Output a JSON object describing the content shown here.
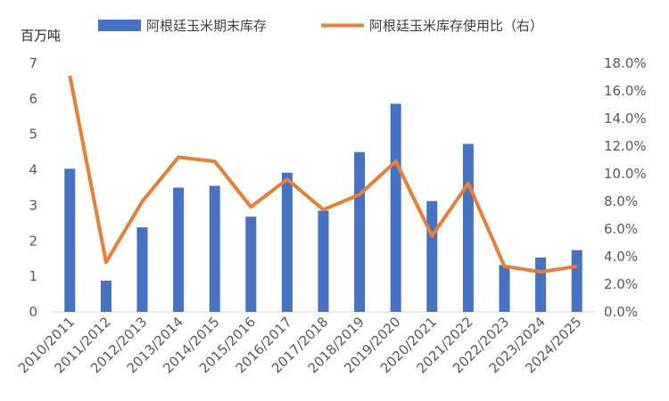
{
  "chart_data": {
    "type": "bar",
    "title": "",
    "ylabel": "百万吨",
    "ylim": [
      0,
      7
    ],
    "y2lim": [
      0,
      18
    ],
    "y_ticks": [
      "0",
      "1",
      "2",
      "3",
      "4",
      "5",
      "6",
      "7"
    ],
    "y2_ticks": [
      "0.0%",
      "2.0%",
      "4.0%",
      "6.0%",
      "8.0%",
      "10.0%",
      "12.0%",
      "14.0%",
      "16.0%",
      "18.0%"
    ],
    "legend_position": "top",
    "categories": [
      "2010/2011",
      "2011/2012",
      "2012/2013",
      "2013/2014",
      "2014/2015",
      "2015/2016",
      "2016/2017",
      "2017/2018",
      "2018/2019",
      "2019/2020",
      "2020/2021",
      "2021/2022",
      "2022/2023",
      "2023/2024",
      "2024/2025"
    ],
    "series": [
      {
        "name": "阿根廷玉米期末库存",
        "type": "bar",
        "axis": "left",
        "color": "#4472C4",
        "values": [
          4.03,
          0.88,
          2.38,
          3.5,
          3.55,
          2.68,
          3.92,
          2.85,
          4.5,
          5.86,
          3.12,
          4.73,
          1.32,
          1.53,
          1.74
        ]
      },
      {
        "name": "阿根廷玉米库存使用比（右）",
        "type": "line",
        "axis": "right",
        "color": "#ED7D31",
        "values": [
          17.1,
          3.6,
          8.0,
          11.2,
          10.9,
          7.6,
          9.6,
          7.4,
          8.5,
          10.9,
          5.5,
          9.3,
          3.3,
          2.9,
          3.3
        ]
      }
    ]
  }
}
